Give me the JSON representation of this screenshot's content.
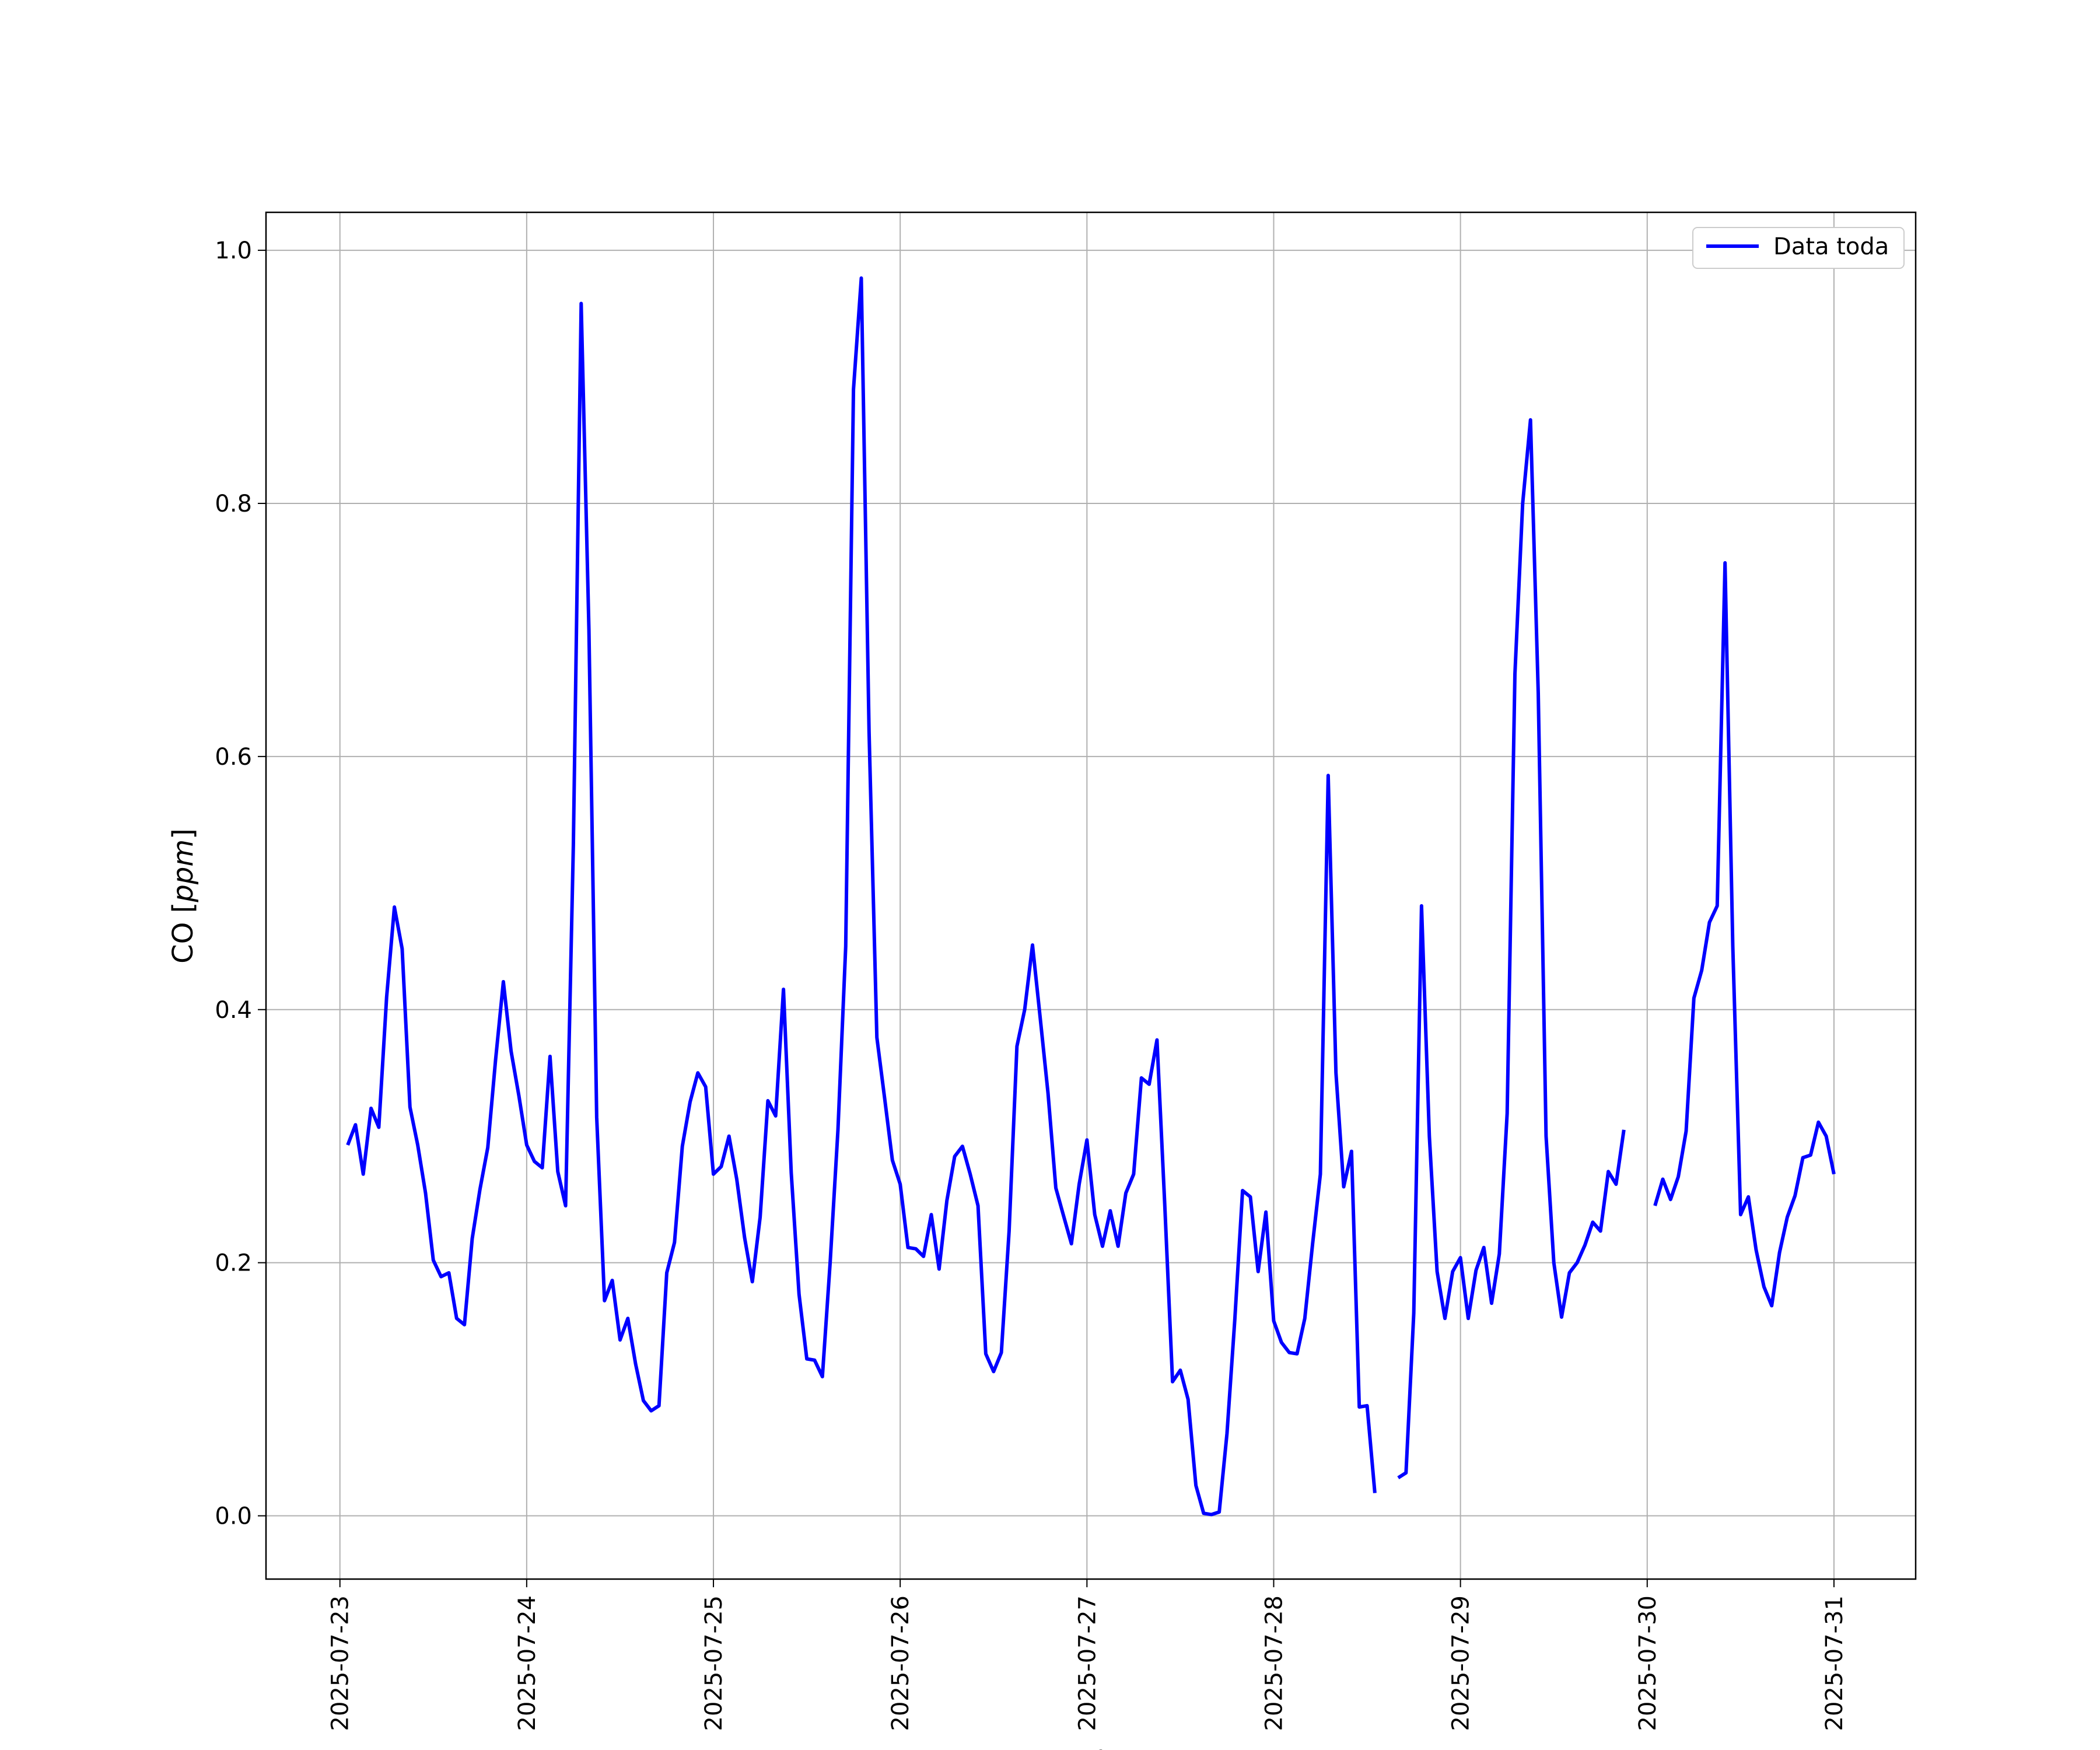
{
  "chart_data": {
    "type": "line",
    "title": "",
    "xlabel": "Fecha",
    "ylabel": "CO [ppm]",
    "ylabel_parts": {
      "prefix": "CO [",
      "italic": "ppm",
      "suffix": "]"
    },
    "x_tick_labels": [
      "2025-07-23",
      "2025-07-24",
      "2025-07-25",
      "2025-07-26",
      "2025-07-27",
      "2025-07-28",
      "2025-07-29",
      "2025-07-30",
      "2025-07-31"
    ],
    "y_tick_labels": [
      "0.0",
      "0.2",
      "0.4",
      "0.6",
      "0.8",
      "1.0"
    ],
    "xlim": [
      "2025-07-22 14:30",
      "2025-07-31 10:30"
    ],
    "ylim": [
      -0.05,
      1.03
    ],
    "grid": true,
    "legend_position": "top-right",
    "colors": {
      "series": "#0000ff",
      "grid": "#b0b0b0",
      "frame": "#000000"
    },
    "series": [
      {
        "name": "Data toda",
        "points": [
          [
            "2025-07-23 01:00",
            0.293
          ],
          [
            "2025-07-23 02:00",
            0.309
          ],
          [
            "2025-07-23 03:00",
            0.27
          ],
          [
            "2025-07-23 04:00",
            0.322
          ],
          [
            "2025-07-23 05:00",
            0.307
          ],
          [
            "2025-07-23 06:00",
            0.41
          ],
          [
            "2025-07-23 07:00",
            0.481
          ],
          [
            "2025-07-23 08:00",
            0.448
          ],
          [
            "2025-07-23 09:00",
            0.323
          ],
          [
            "2025-07-23 10:00",
            0.293
          ],
          [
            "2025-07-23 11:00",
            0.255
          ],
          [
            "2025-07-23 12:00",
            0.202
          ],
          [
            "2025-07-23 13:00",
            0.189
          ],
          [
            "2025-07-23 14:00",
            0.192
          ],
          [
            "2025-07-23 15:00",
            0.156
          ],
          [
            "2025-07-23 16:00",
            0.151
          ],
          [
            "2025-07-23 17:00",
            0.219
          ],
          [
            "2025-07-23 18:00",
            0.258
          ],
          [
            "2025-07-23 19:00",
            0.291
          ],
          [
            "2025-07-23 20:00",
            0.36
          ],
          [
            "2025-07-23 21:00",
            0.422
          ],
          [
            "2025-07-23 22:00",
            0.367
          ],
          [
            "2025-07-23 23:00",
            0.332
          ],
          [
            "2025-07-24 00:00",
            0.293
          ],
          [
            "2025-07-24 01:00",
            0.28
          ],
          [
            "2025-07-24 02:00",
            0.275
          ],
          [
            "2025-07-24 03:00",
            0.363
          ],
          [
            "2025-07-24 04:00",
            0.272
          ],
          [
            "2025-07-24 05:00",
            0.245
          ],
          [
            "2025-07-24 06:00",
            0.53
          ],
          [
            "2025-07-24 07:00",
            0.958
          ],
          [
            "2025-07-24 08:00",
            0.7
          ],
          [
            "2025-07-24 09:00",
            0.315
          ],
          [
            "2025-07-24 10:00",
            0.17
          ],
          [
            "2025-07-24 11:00",
            0.186
          ],
          [
            "2025-07-24 12:00",
            0.139
          ],
          [
            "2025-07-24 13:00",
            0.156
          ],
          [
            "2025-07-24 14:00",
            0.12
          ],
          [
            "2025-07-24 15:00",
            0.091
          ],
          [
            "2025-07-24 16:00",
            0.083
          ],
          [
            "2025-07-24 17:00",
            0.087
          ],
          [
            "2025-07-24 18:00",
            0.192
          ],
          [
            "2025-07-24 19:00",
            0.216
          ],
          [
            "2025-07-24 20:00",
            0.292
          ],
          [
            "2025-07-24 21:00",
            0.327
          ],
          [
            "2025-07-24 22:00",
            0.35
          ],
          [
            "2025-07-24 23:00",
            0.339
          ],
          [
            "2025-07-25 00:00",
            0.27
          ],
          [
            "2025-07-25 01:00",
            0.276
          ],
          [
            "2025-07-25 02:00",
            0.3
          ],
          [
            "2025-07-25 03:00",
            0.266
          ],
          [
            "2025-07-25 04:00",
            0.22
          ],
          [
            "2025-07-25 05:00",
            0.185
          ],
          [
            "2025-07-25 06:00",
            0.236
          ],
          [
            "2025-07-25 07:00",
            0.328
          ],
          [
            "2025-07-25 08:00",
            0.316
          ],
          [
            "2025-07-25 09:00",
            0.416
          ],
          [
            "2025-07-25 10:00",
            0.271
          ],
          [
            "2025-07-25 11:00",
            0.175
          ],
          [
            "2025-07-25 12:00",
            0.124
          ],
          [
            "2025-07-25 13:00",
            0.123
          ],
          [
            "2025-07-25 14:00",
            0.11
          ],
          [
            "2025-07-25 15:00",
            0.2
          ],
          [
            "2025-07-25 16:00",
            0.305
          ],
          [
            "2025-07-25 17:00",
            0.45
          ],
          [
            "2025-07-25 18:00",
            0.89
          ],
          [
            "2025-07-25 19:00",
            0.978
          ],
          [
            "2025-07-25 20:00",
            0.62
          ],
          [
            "2025-07-25 21:00",
            0.378
          ],
          [
            "2025-07-25 22:00",
            0.33
          ],
          [
            "2025-07-25 23:00",
            0.281
          ],
          [
            "2025-07-26 00:00",
            0.262
          ],
          [
            "2025-07-26 01:00",
            0.212
          ],
          [
            "2025-07-26 02:00",
            0.211
          ],
          [
            "2025-07-26 03:00",
            0.205
          ],
          [
            "2025-07-26 04:00",
            0.238
          ],
          [
            "2025-07-26 05:00",
            0.195
          ],
          [
            "2025-07-26 06:00",
            0.249
          ],
          [
            "2025-07-26 07:00",
            0.284
          ],
          [
            "2025-07-26 08:00",
            0.292
          ],
          [
            "2025-07-26 09:00",
            0.27
          ],
          [
            "2025-07-26 10:00",
            0.245
          ],
          [
            "2025-07-26 11:00",
            0.128
          ],
          [
            "2025-07-26 12:00",
            0.114
          ],
          [
            "2025-07-26 13:00",
            0.129
          ],
          [
            "2025-07-26 14:00",
            0.225
          ],
          [
            "2025-07-26 15:00",
            0.371
          ],
          [
            "2025-07-26 16:00",
            0.4
          ],
          [
            "2025-07-26 17:00",
            0.451
          ],
          [
            "2025-07-26 18:00",
            0.393
          ],
          [
            "2025-07-26 19:00",
            0.334
          ],
          [
            "2025-07-26 20:00",
            0.259
          ],
          [
            "2025-07-26 21:00",
            0.237
          ],
          [
            "2025-07-26 22:00",
            0.215
          ],
          [
            "2025-07-26 23:00",
            0.262
          ],
          [
            "2025-07-27 00:00",
            0.297
          ],
          [
            "2025-07-27 01:00",
            0.238
          ],
          [
            "2025-07-27 02:00",
            0.213
          ],
          [
            "2025-07-27 03:00",
            0.241
          ],
          [
            "2025-07-27 04:00",
            0.213
          ],
          [
            "2025-07-27 05:00",
            0.255
          ],
          [
            "2025-07-27 06:00",
            0.27
          ],
          [
            "2025-07-27 07:00",
            0.346
          ],
          [
            "2025-07-27 08:00",
            0.341
          ],
          [
            "2025-07-27 09:00",
            0.376
          ],
          [
            "2025-07-27 10:00",
            0.246
          ],
          [
            "2025-07-27 11:00",
            0.106
          ],
          [
            "2025-07-27 12:00",
            0.115
          ],
          [
            "2025-07-27 13:00",
            0.092
          ],
          [
            "2025-07-27 14:00",
            0.024
          ],
          [
            "2025-07-27 15:00",
            0.002
          ],
          [
            "2025-07-27 16:00",
            0.001
          ],
          [
            "2025-07-27 17:00",
            0.003
          ],
          [
            "2025-07-27 18:00",
            0.065
          ],
          [
            "2025-07-27 19:00",
            0.155
          ],
          [
            "2025-07-27 20:00",
            0.257
          ],
          [
            "2025-07-27 21:00",
            0.252
          ],
          [
            "2025-07-27 22:00",
            0.193
          ],
          [
            "2025-07-27 23:00",
            0.24
          ],
          [
            "2025-07-28 00:00",
            0.154
          ],
          [
            "2025-07-28 01:00",
            0.137
          ],
          [
            "2025-07-28 02:00",
            0.129
          ],
          [
            "2025-07-28 03:00",
            0.128
          ],
          [
            "2025-07-28 04:00",
            0.156
          ],
          [
            "2025-07-28 05:00",
            0.215
          ],
          [
            "2025-07-28 06:00",
            0.27
          ],
          [
            "2025-07-28 07:00",
            0.585
          ],
          [
            "2025-07-28 08:00",
            0.35
          ],
          [
            "2025-07-28 09:00",
            0.26
          ],
          [
            "2025-07-28 10:00",
            0.288
          ],
          [
            "2025-07-28 11:00",
            0.086
          ],
          [
            "2025-07-28 12:00",
            0.087
          ],
          [
            "2025-07-28 13:00",
            0.018
          ],
          [
            "2025-07-28 14:00",
            null
          ],
          [
            "2025-07-28 15:00",
            null
          ],
          [
            "2025-07-28 16:00",
            0.03
          ],
          [
            "2025-07-28 17:00",
            0.034
          ],
          [
            "2025-07-28 18:00",
            0.16
          ],
          [
            "2025-07-28 19:00",
            0.482
          ],
          [
            "2025-07-28 20:00",
            0.3
          ],
          [
            "2025-07-28 21:00",
            0.193
          ],
          [
            "2025-07-28 22:00",
            0.156
          ],
          [
            "2025-07-28 23:00",
            0.193
          ],
          [
            "2025-07-29 00:00",
            0.204
          ],
          [
            "2025-07-29 01:00",
            0.156
          ],
          [
            "2025-07-29 02:00",
            0.194
          ],
          [
            "2025-07-29 03:00",
            0.212
          ],
          [
            "2025-07-29 04:00",
            0.168
          ],
          [
            "2025-07-29 05:00",
            0.207
          ],
          [
            "2025-07-29 06:00",
            0.318
          ],
          [
            "2025-07-29 07:00",
            0.665
          ],
          [
            "2025-07-29 08:00",
            0.8
          ],
          [
            "2025-07-29 09:00",
            0.866
          ],
          [
            "2025-07-29 10:00",
            0.65
          ],
          [
            "2025-07-29 11:00",
            0.3
          ],
          [
            "2025-07-29 12:00",
            0.2
          ],
          [
            "2025-07-29 13:00",
            0.157
          ],
          [
            "2025-07-29 14:00",
            0.192
          ],
          [
            "2025-07-29 15:00",
            0.2
          ],
          [
            "2025-07-29 16:00",
            0.214
          ],
          [
            "2025-07-29 17:00",
            0.232
          ],
          [
            "2025-07-29 18:00",
            0.225
          ],
          [
            "2025-07-29 19:00",
            0.272
          ],
          [
            "2025-07-29 20:00",
            0.262
          ],
          [
            "2025-07-29 21:00",
            0.305
          ],
          [
            "2025-07-29 22:00",
            null
          ],
          [
            "2025-07-29 23:00",
            null
          ],
          [
            "2025-07-30 00:00",
            null
          ],
          [
            "2025-07-30 01:00",
            0.245
          ],
          [
            "2025-07-30 02:00",
            0.266
          ],
          [
            "2025-07-30 03:00",
            0.25
          ],
          [
            "2025-07-30 04:00",
            0.268
          ],
          [
            "2025-07-30 05:00",
            0.304
          ],
          [
            "2025-07-30 06:00",
            0.409
          ],
          [
            "2025-07-30 07:00",
            0.431
          ],
          [
            "2025-07-30 08:00",
            0.469
          ],
          [
            "2025-07-30 09:00",
            0.482
          ],
          [
            "2025-07-30 10:00",
            0.753
          ],
          [
            "2025-07-30 11:00",
            0.45
          ],
          [
            "2025-07-30 12:00",
            0.238
          ],
          [
            "2025-07-30 13:00",
            0.252
          ],
          [
            "2025-07-30 14:00",
            0.21
          ],
          [
            "2025-07-30 15:00",
            0.181
          ],
          [
            "2025-07-30 16:00",
            0.166
          ],
          [
            "2025-07-30 17:00",
            0.208
          ],
          [
            "2025-07-30 18:00",
            0.236
          ],
          [
            "2025-07-30 19:00",
            0.253
          ],
          [
            "2025-07-30 20:00",
            0.283
          ],
          [
            "2025-07-30 21:00",
            0.285
          ],
          [
            "2025-07-30 22:00",
            0.311
          ],
          [
            "2025-07-30 23:00",
            0.3
          ],
          [
            "2025-07-31 00:00",
            0.27
          ]
        ]
      }
    ]
  }
}
